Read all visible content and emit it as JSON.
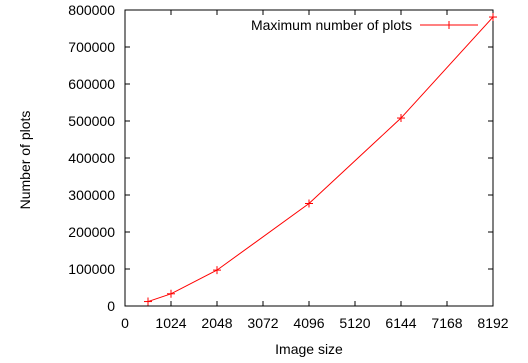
{
  "chart_data": {
    "type": "line",
    "title": "",
    "xlabel": "Image size",
    "ylabel": "Number of plots",
    "xlim": [
      0,
      8192
    ],
    "ylim": [
      0,
      800000
    ],
    "x_ticks": [
      0,
      1024,
      2048,
      3072,
      4096,
      5120,
      6144,
      7168,
      8192
    ],
    "y_ticks": [
      0,
      100000,
      200000,
      300000,
      400000,
      500000,
      600000,
      700000,
      800000
    ],
    "grid": false,
    "legend": {
      "position": "top-right",
      "entries": [
        "Maximum number of plots"
      ]
    },
    "series": [
      {
        "name": "Maximum number of plots",
        "color": "#ff0000",
        "marker": "plus",
        "x": [
          512,
          1024,
          2048,
          4096,
          6144,
          8192
        ],
        "y": [
          12000,
          33000,
          97000,
          277000,
          508000,
          781000
        ]
      }
    ]
  }
}
